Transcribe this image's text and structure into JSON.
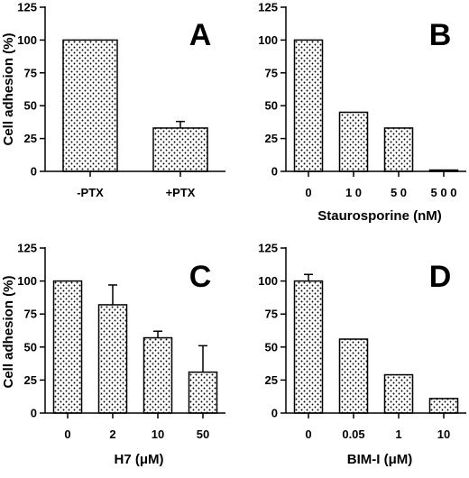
{
  "chart_data": [
    {
      "type": "bar",
      "panel_label": "A",
      "categories": [
        "-PTX",
        "+PTX"
      ],
      "values": [
        100,
        33
      ],
      "error_bars": [
        null,
        5
      ],
      "ylabel": "Cell adhesion (%)",
      "xlabel": "",
      "ylim": [
        0,
        125
      ],
      "yticks": [
        "0",
        "25",
        "50",
        "75",
        "100",
        "125"
      ]
    },
    {
      "type": "bar",
      "panel_label": "B",
      "categories": [
        "0",
        "1 0",
        "5 0",
        "5 0 0"
      ],
      "values": [
        100,
        45,
        33,
        1
      ],
      "error_bars": [
        null,
        null,
        null,
        null
      ],
      "ylabel": "",
      "xlabel": "Staurosporine (nM)",
      "ylim": [
        0,
        125
      ],
      "yticks": [
        "0",
        "25",
        "50",
        "75",
        "100",
        "125"
      ]
    },
    {
      "type": "bar",
      "panel_label": "C",
      "categories": [
        "0",
        "2",
        "10",
        "50"
      ],
      "values": [
        100,
        82,
        57,
        31
      ],
      "error_bars": [
        null,
        15,
        5,
        20
      ],
      "ylabel": "Cell adhesion (%)",
      "xlabel": "H7  (μM)",
      "ylim": [
        0,
        125
      ],
      "yticks": [
        "0",
        "25",
        "50",
        "75",
        "100",
        "125"
      ]
    },
    {
      "type": "bar",
      "panel_label": "D",
      "categories": [
        "0",
        "0.05",
        "1",
        "10"
      ],
      "values": [
        100,
        56,
        29,
        11
      ],
      "error_bars": [
        5,
        null,
        null,
        null
      ],
      "ylabel": "",
      "xlabel": "BIM-I  (μM)",
      "ylim": [
        0,
        125
      ],
      "yticks": [
        "0",
        "25",
        "50",
        "75",
        "100",
        "125"
      ]
    }
  ]
}
